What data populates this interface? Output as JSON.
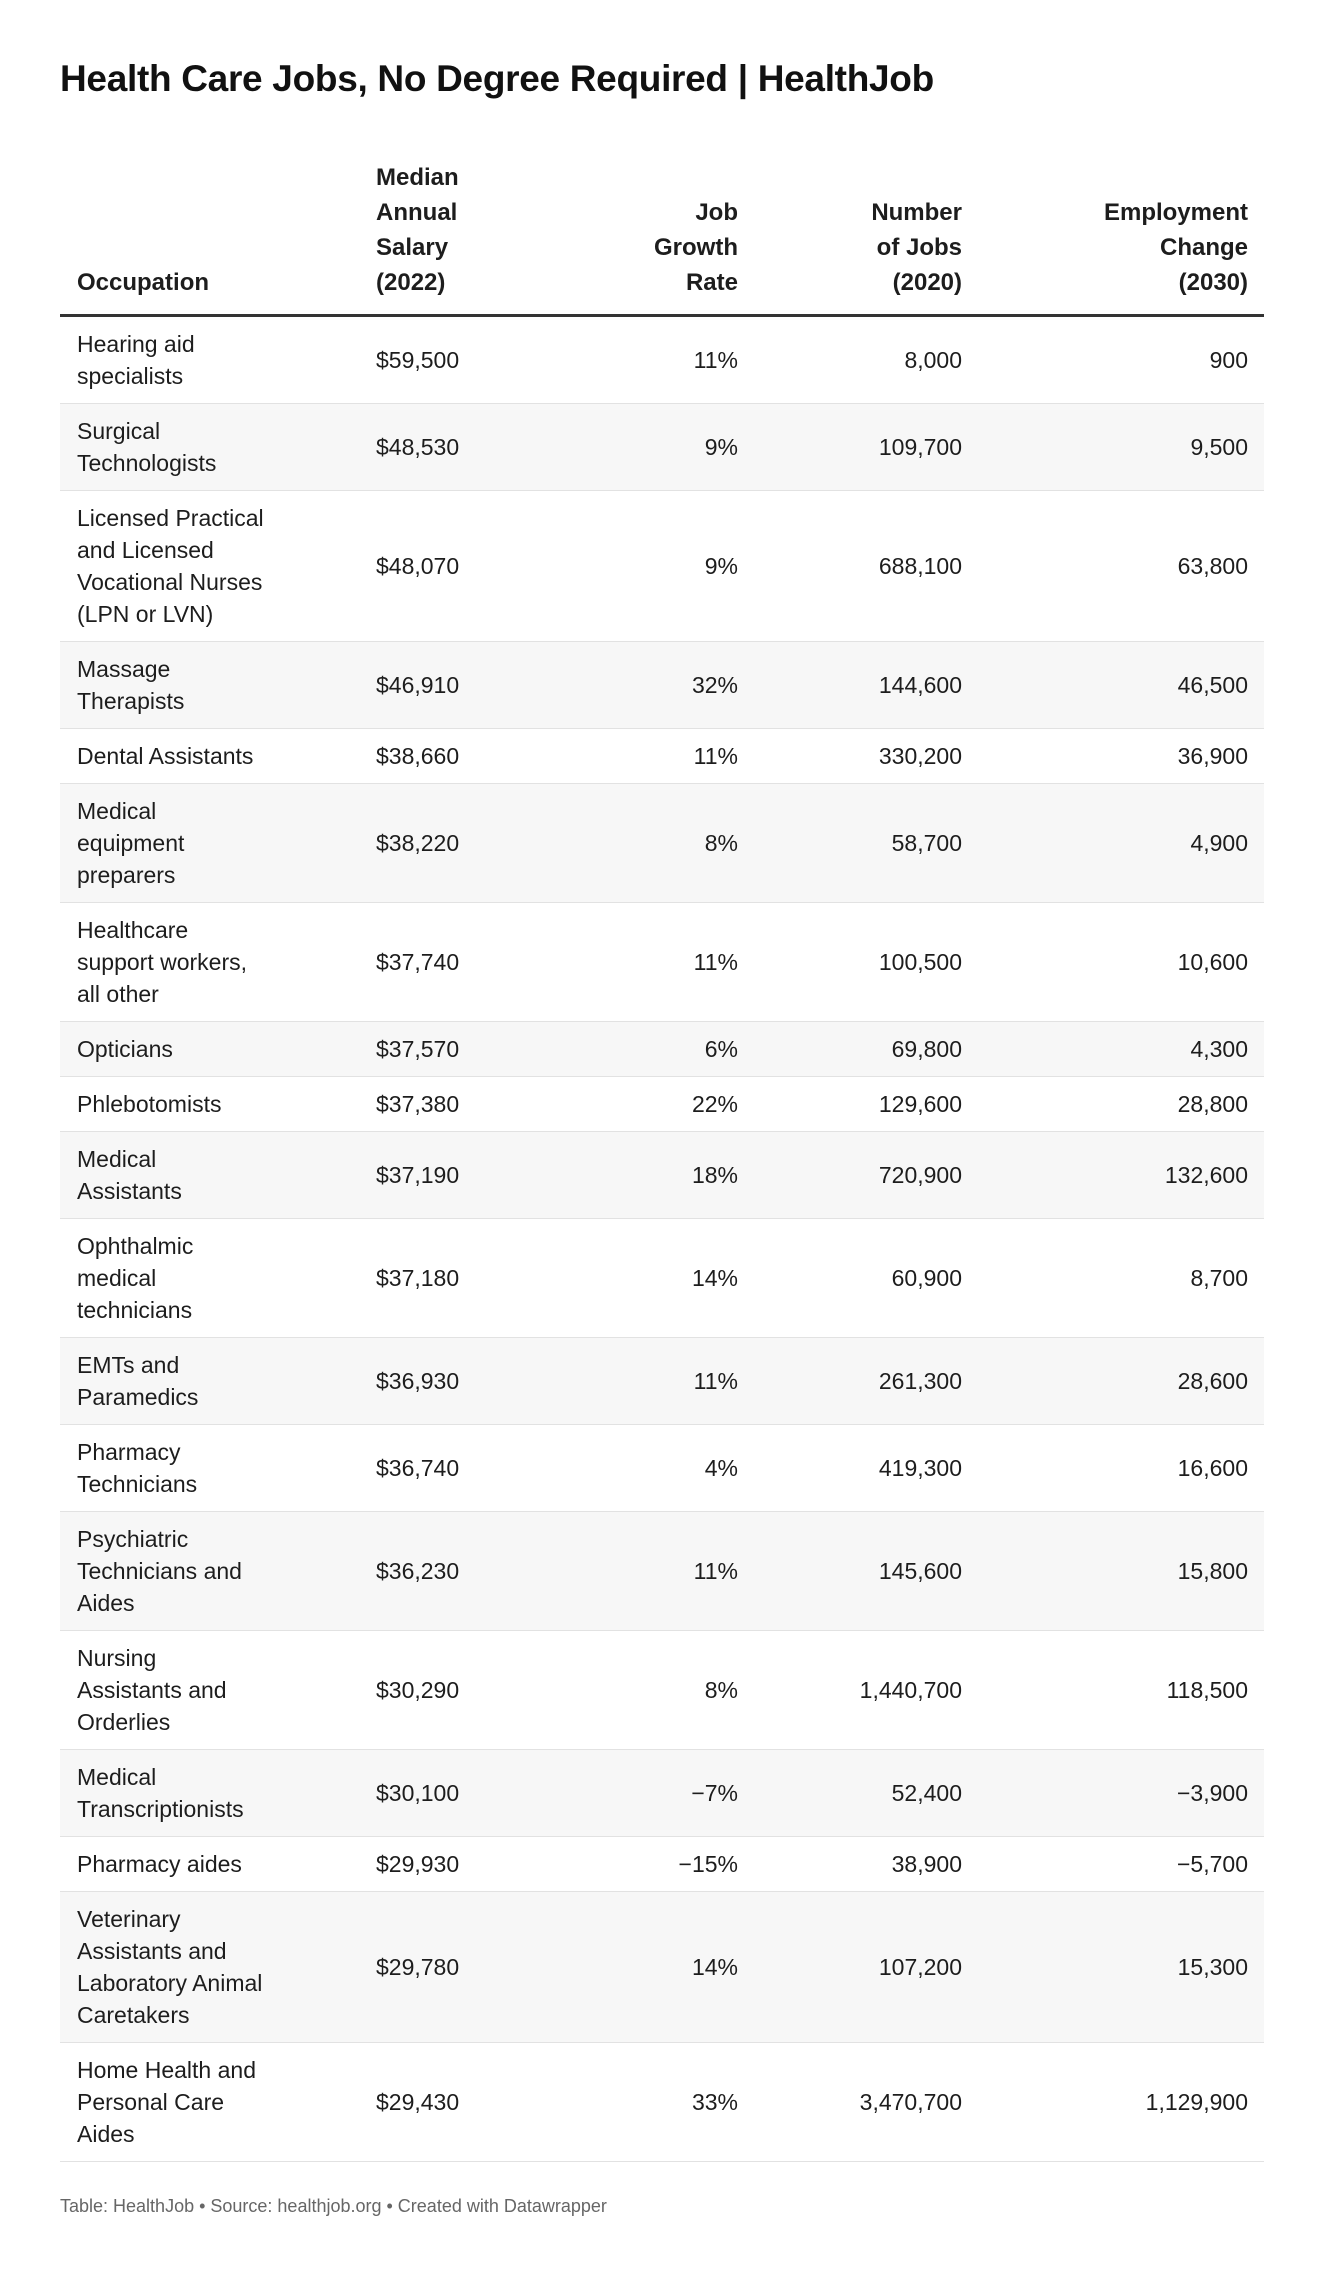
{
  "title": "Health Care Jobs, No Degree Required | HealthJob",
  "columns": {
    "occupation": "Occupation",
    "salary": "Median Annual Salary (2022)",
    "growth": "Job Growth Rate",
    "jobs": "Number of Jobs (2020)",
    "change": "Employment Change (2030)"
  },
  "rows": [
    {
      "occupation": "Hearing aid specialists",
      "salary": "$59,500",
      "growth": "11%",
      "jobs": "8,000",
      "change": "900"
    },
    {
      "occupation": "Surgical Technologists",
      "salary": "$48,530",
      "growth": "9%",
      "jobs": "109,700",
      "change": "9,500"
    },
    {
      "occupation": "Licensed Practical and Licensed Vocational Nurses (LPN or LVN)",
      "salary": "$48,070",
      "growth": "9%",
      "jobs": "688,100",
      "change": "63,800"
    },
    {
      "occupation": "Massage Therapists",
      "salary": "$46,910",
      "growth": "32%",
      "jobs": "144,600",
      "change": "46,500"
    },
    {
      "occupation": "Dental Assistants",
      "salary": "$38,660",
      "growth": "11%",
      "jobs": "330,200",
      "change": "36,900"
    },
    {
      "occupation": "Medical equipment preparers",
      "salary": "$38,220",
      "growth": "8%",
      "jobs": "58,700",
      "change": "4,900"
    },
    {
      "occupation": "Healthcare support workers, all other",
      "salary": "$37,740",
      "growth": "11%",
      "jobs": "100,500",
      "change": "10,600"
    },
    {
      "occupation": "Opticians",
      "salary": "$37,570",
      "growth": "6%",
      "jobs": "69,800",
      "change": "4,300"
    },
    {
      "occupation": "Phlebotomists",
      "salary": "$37,380",
      "growth": "22%",
      "jobs": "129,600",
      "change": "28,800"
    },
    {
      "occupation": "Medical Assistants",
      "salary": "$37,190",
      "growth": "18%",
      "jobs": "720,900",
      "change": "132,600"
    },
    {
      "occupation": "Ophthalmic medical technicians",
      "salary": "$37,180",
      "growth": "14%",
      "jobs": "60,900",
      "change": "8,700"
    },
    {
      "occupation": "EMTs and Paramedics",
      "salary": "$36,930",
      "growth": "11%",
      "jobs": "261,300",
      "change": "28,600"
    },
    {
      "occupation": "Pharmacy Technicians",
      "salary": "$36,740",
      "growth": "4%",
      "jobs": "419,300",
      "change": "16,600"
    },
    {
      "occupation": "Psychiatric Technicians and Aides",
      "salary": "$36,230",
      "growth": "11%",
      "jobs": "145,600",
      "change": "15,800"
    },
    {
      "occupation": "Nursing Assistants and Orderlies",
      "salary": "$30,290",
      "growth": "8%",
      "jobs": "1,440,700",
      "change": "118,500"
    },
    {
      "occupation": "Medical Transcriptionists",
      "salary": "$30,100",
      "growth": "−7%",
      "jobs": "52,400",
      "change": "−3,900"
    },
    {
      "occupation": "Pharmacy aides",
      "salary": "$29,930",
      "growth": "−15%",
      "jobs": "38,900",
      "change": "−5,700"
    },
    {
      "occupation": "Veterinary Assistants and Laboratory Animal Caretakers",
      "salary": "$29,780",
      "growth": "14%",
      "jobs": "107,200",
      "change": "15,300"
    },
    {
      "occupation": "Home Health and Personal Care Aides",
      "salary": "$29,430",
      "growth": "33%",
      "jobs": "3,470,700",
      "change": "1,129,900"
    }
  ],
  "footer": "Table: HealthJob • Source: healthjob.org • Created with Datawrapper"
}
